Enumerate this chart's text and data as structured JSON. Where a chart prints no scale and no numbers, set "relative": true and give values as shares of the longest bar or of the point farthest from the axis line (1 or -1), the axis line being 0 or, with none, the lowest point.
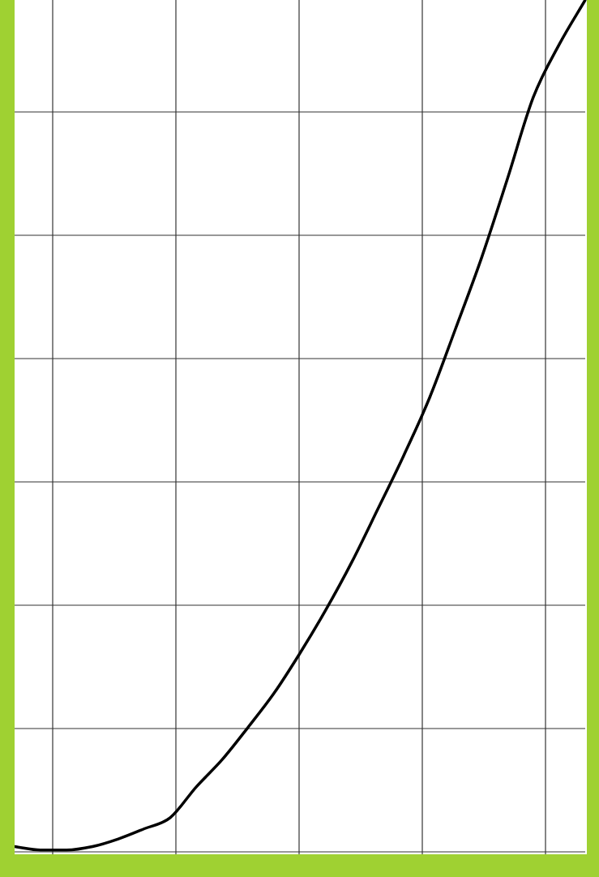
{
  "chart_data": {
    "type": "line",
    "relative": true,
    "grid": true,
    "marker": "none",
    "line_style": "solid",
    "categories": [
      null,
      null,
      null,
      null,
      null,
      null,
      null,
      null,
      null,
      null,
      null,
      null,
      null,
      null,
      null,
      null,
      null,
      null,
      null,
      null,
      null,
      null,
      null
    ],
    "series": [
      {
        "color": "#000000",
        "values": [
          0.006,
          0.002,
          0.002,
          0.006,
          0.015,
          0.027,
          0.04,
          0.076,
          0.108,
          0.146,
          0.186,
          0.233,
          0.284,
          0.34,
          0.402,
          0.465,
          0.533,
          0.614,
          0.697,
          0.79,
          0.886,
          0.948,
          1
        ]
      }
    ]
  }
}
